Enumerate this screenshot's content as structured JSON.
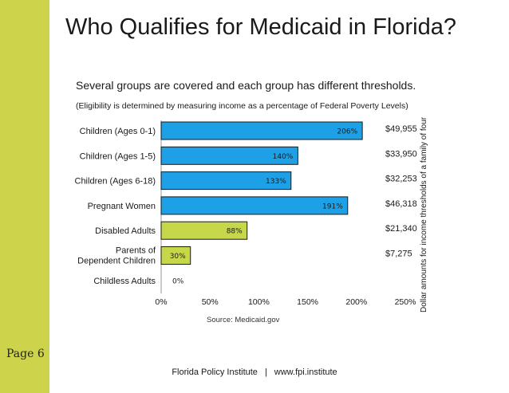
{
  "title": "Who Qualifies for Medicaid in Florida?",
  "subtitle": "Several groups are covered and each group has different thresholds.",
  "note": "(Eligibility is determined by measuring income as a percentage of Federal Poverty Levels)",
  "side_label": "Dollar amounts for income thresholds of a family of four",
  "source": "Source: Medicaid.gov",
  "page_label": "Page 6",
  "footer": {
    "org": "Florida Policy Institute",
    "separator": "|",
    "url": "www.fpi.institute"
  },
  "colors": {
    "accent_bar": "#cdd34a",
    "bar_blue": "#1ea0e6",
    "bar_green": "#c6d84a"
  },
  "chart_data": {
    "type": "bar",
    "orientation": "horizontal",
    "categories": [
      "Children (Ages 0-1)",
      "Children (Ages 1-5)",
      "Children (Ages 6-18)",
      "Pregnant Women",
      "Disabled Adults",
      "Parents of Dependent Children",
      "Childless Adults"
    ],
    "category_lines": [
      [
        "Children (Ages 0-1)"
      ],
      [
        "Children (Ages 1-5)"
      ],
      [
        "Children (Ages 6-18)"
      ],
      [
        "Pregnant Women"
      ],
      [
        "Disabled Adults"
      ],
      [
        "Parents of",
        "Dependent Children"
      ],
      [
        "Childless Adults"
      ]
    ],
    "values": [
      206,
      140,
      133,
      191,
      88,
      30,
      0
    ],
    "value_labels": [
      "206%",
      "140%",
      "133%",
      "191%",
      "88%",
      "30%",
      "0%"
    ],
    "bar_colors": [
      "#1ea0e6",
      "#1ea0e6",
      "#1ea0e6",
      "#1ea0e6",
      "#c6d84a",
      "#c6d84a",
      "#c6d84a"
    ],
    "dollar_thresholds": [
      "$49,955",
      "$33,950",
      "$32,253",
      "$46,318",
      "$21,340",
      "$7,275",
      ""
    ],
    "xlim": [
      0,
      250
    ],
    "x_ticks": [
      0,
      50,
      100,
      150,
      200,
      250
    ],
    "x_tick_labels": [
      "0%",
      "50%",
      "100%",
      "150%",
      "200%",
      "250%"
    ],
    "xlabel": "",
    "ylabel": ""
  }
}
